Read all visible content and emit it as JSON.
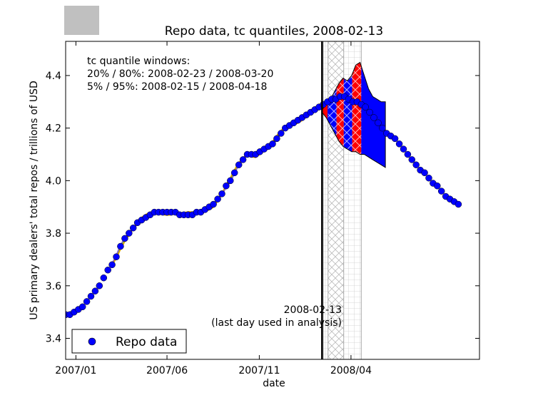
{
  "chart_data": {
    "type": "scatter",
    "title": "Repo data, tc quantiles, 2008-02-13",
    "xlabel": "date",
    "ylabel": "US primary dealers' total repos / trillions of USD",
    "ylim": [
      3.32,
      4.53
    ],
    "xlim": [
      "2006-12-15",
      "2008-10-31"
    ],
    "x_tick_labels": [
      "2007/01",
      "2007/06",
      "2007/11",
      "2008/04"
    ],
    "x_tick_dates": [
      "2007-01-01",
      "2007-06-01",
      "2007-11-01",
      "2008-04-01"
    ],
    "y_ticks": [
      3.4,
      3.6,
      3.8,
      4.0,
      4.2,
      4.4
    ],
    "y_tick_labels": [
      "3.4",
      "3.6",
      "3.8",
      "4.0",
      "4.2",
      "4.4"
    ],
    "legend": {
      "entry": "Repo data",
      "placement": "bottom-left"
    },
    "annotation_box": {
      "heading": "tc quantile windows:",
      "line1": "20% / 80%:  2008-02-23 / 2008-03-20",
      "line2": "5% / 95%:  2008-02-15 / 2008-04-18"
    },
    "vline": {
      "date": "2008-02-13",
      "label_line1": "2008-02-13",
      "label_line2": "(last day used in analysis)"
    },
    "tc_windows": {
      "q20": "2008-02-23",
      "q80": "2008-03-20",
      "q05": "2008-02-15",
      "q95": "2008-04-18"
    },
    "series": [
      {
        "name": "Repo data",
        "color": "#0000ff",
        "points": [
          [
            "2006-12-15",
            3.49
          ],
          [
            "2006-12-22",
            3.49
          ],
          [
            "2006-12-29",
            3.5
          ],
          [
            "2007-01-05",
            3.51
          ],
          [
            "2007-01-12",
            3.52
          ],
          [
            "2007-01-19",
            3.54
          ],
          [
            "2007-01-26",
            3.56
          ],
          [
            "2007-02-02",
            3.58
          ],
          [
            "2007-02-09",
            3.6
          ],
          [
            "2007-02-16",
            3.63
          ],
          [
            "2007-02-23",
            3.66
          ],
          [
            "2007-03-02",
            3.68
          ],
          [
            "2007-03-09",
            3.71
          ],
          [
            "2007-03-16",
            3.75
          ],
          [
            "2007-03-23",
            3.78
          ],
          [
            "2007-03-30",
            3.8
          ],
          [
            "2007-04-06",
            3.82
          ],
          [
            "2007-04-13",
            3.84
          ],
          [
            "2007-04-20",
            3.85
          ],
          [
            "2007-04-27",
            3.86
          ],
          [
            "2007-05-04",
            3.87
          ],
          [
            "2007-05-11",
            3.88
          ],
          [
            "2007-05-18",
            3.88
          ],
          [
            "2007-05-25",
            3.88
          ],
          [
            "2007-06-01",
            3.88
          ],
          [
            "2007-06-08",
            3.88
          ],
          [
            "2007-06-15",
            3.88
          ],
          [
            "2007-06-22",
            3.87
          ],
          [
            "2007-06-29",
            3.87
          ],
          [
            "2007-07-06",
            3.87
          ],
          [
            "2007-07-13",
            3.87
          ],
          [
            "2007-07-20",
            3.88
          ],
          [
            "2007-07-27",
            3.88
          ],
          [
            "2007-08-03",
            3.89
          ],
          [
            "2007-08-10",
            3.9
          ],
          [
            "2007-08-17",
            3.91
          ],
          [
            "2007-08-24",
            3.93
          ],
          [
            "2007-08-31",
            3.95
          ],
          [
            "2007-09-07",
            3.98
          ],
          [
            "2007-09-14",
            4.0
          ],
          [
            "2007-09-21",
            4.03
          ],
          [
            "2007-09-28",
            4.06
          ],
          [
            "2007-10-05",
            4.08
          ],
          [
            "2007-10-12",
            4.1
          ],
          [
            "2007-10-19",
            4.1
          ],
          [
            "2007-10-26",
            4.1
          ],
          [
            "2007-11-02",
            4.11
          ],
          [
            "2007-11-09",
            4.12
          ],
          [
            "2007-11-16",
            4.13
          ],
          [
            "2007-11-23",
            4.14
          ],
          [
            "2007-11-30",
            4.16
          ],
          [
            "2007-12-07",
            4.18
          ],
          [
            "2007-12-14",
            4.2
          ],
          [
            "2007-12-21",
            4.21
          ],
          [
            "2007-12-28",
            4.22
          ],
          [
            "2008-01-04",
            4.23
          ],
          [
            "2008-01-11",
            4.24
          ],
          [
            "2008-01-18",
            4.25
          ],
          [
            "2008-01-25",
            4.26
          ],
          [
            "2008-02-01",
            4.27
          ],
          [
            "2008-02-08",
            4.28
          ],
          [
            "2008-02-15",
            4.29
          ],
          [
            "2008-02-22",
            4.3
          ],
          [
            "2008-02-29",
            4.31
          ],
          [
            "2008-03-07",
            4.31
          ],
          [
            "2008-03-14",
            4.32
          ],
          [
            "2008-03-21",
            4.32
          ],
          [
            "2008-03-28",
            4.31
          ],
          [
            "2008-04-04",
            4.3
          ],
          [
            "2008-04-11",
            4.3
          ],
          [
            "2008-04-18",
            4.29
          ],
          [
            "2008-04-25",
            4.28
          ],
          [
            "2008-05-02",
            4.26
          ],
          [
            "2008-05-09",
            4.24
          ],
          [
            "2008-05-16",
            4.22
          ],
          [
            "2008-05-23",
            4.2
          ],
          [
            "2008-05-30",
            4.18
          ],
          [
            "2008-06-06",
            4.17
          ],
          [
            "2008-06-13",
            4.16
          ],
          [
            "2008-06-20",
            4.14
          ],
          [
            "2008-06-27",
            4.12
          ],
          [
            "2008-07-04",
            4.1
          ],
          [
            "2008-07-11",
            4.08
          ],
          [
            "2008-07-18",
            4.06
          ],
          [
            "2008-07-25",
            4.04
          ],
          [
            "2008-08-01",
            4.03
          ],
          [
            "2008-08-08",
            4.01
          ],
          [
            "2008-08-15",
            3.99
          ],
          [
            "2008-08-22",
            3.98
          ],
          [
            "2008-08-29",
            3.96
          ],
          [
            "2008-09-05",
            3.94
          ],
          [
            "2008-09-12",
            3.93
          ],
          [
            "2008-09-19",
            3.92
          ],
          [
            "2008-09-26",
            3.91
          ]
        ]
      }
    ],
    "fit_colors": [
      "#e6a800",
      "#b04a9a",
      "#3cb43c",
      "#d4a000",
      "#8a6ad0"
    ],
    "forecast": {
      "outline_top": [
        [
          "2008-02-13",
          4.27
        ],
        [
          "2008-02-20",
          4.29
        ],
        [
          "2008-02-27",
          4.31
        ],
        [
          "2008-03-05",
          4.34
        ],
        [
          "2008-03-12",
          4.37
        ],
        [
          "2008-03-19",
          4.39
        ],
        [
          "2008-03-26",
          4.38
        ],
        [
          "2008-04-02",
          4.4
        ],
        [
          "2008-04-09",
          4.44
        ],
        [
          "2008-04-16",
          4.45
        ],
        [
          "2008-04-23",
          4.4
        ],
        [
          "2008-04-30",
          4.35
        ],
        [
          "2008-05-07",
          4.32
        ],
        [
          "2008-05-14",
          4.31
        ],
        [
          "2008-05-21",
          4.3
        ],
        [
          "2008-05-28",
          4.3
        ]
      ],
      "outline_bottom": [
        [
          "2008-05-28",
          4.05
        ],
        [
          "2008-05-21",
          4.06
        ],
        [
          "2008-05-14",
          4.07
        ],
        [
          "2008-05-07",
          4.08
        ],
        [
          "2008-04-30",
          4.09
        ],
        [
          "2008-04-23",
          4.1
        ],
        [
          "2008-04-16",
          4.1
        ],
        [
          "2008-04-09",
          4.11
        ],
        [
          "2008-04-02",
          4.11
        ],
        [
          "2008-03-26",
          4.12
        ],
        [
          "2008-03-19",
          4.13
        ],
        [
          "2008-03-12",
          4.15
        ],
        [
          "2008-03-05",
          4.18
        ],
        [
          "2008-02-27",
          4.21
        ],
        [
          "2008-02-20",
          4.24
        ],
        [
          "2008-02-13",
          4.26
        ]
      ],
      "bands": [
        {
          "start": "2008-02-13",
          "end": "2008-02-22",
          "color": "#ff0000"
        },
        {
          "start": "2008-02-22",
          "end": "2008-03-08",
          "color": "#0000ff"
        },
        {
          "start": "2008-03-08",
          "end": "2008-03-20",
          "color": "#ff0000"
        },
        {
          "start": "2008-03-20",
          "end": "2008-04-03",
          "color": "#0000ff"
        },
        {
          "start": "2008-04-03",
          "end": "2008-04-18",
          "color": "#ff0000"
        },
        {
          "start": "2008-04-18",
          "end": "2008-05-28",
          "color": "#0000ff"
        }
      ]
    }
  }
}
